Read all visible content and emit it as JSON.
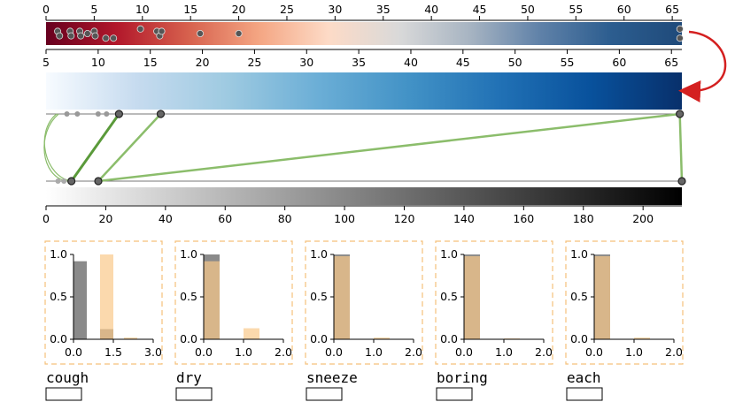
{
  "colors": {
    "ramp_top": [
      "#67001f",
      "#b2182b",
      "#d6604d",
      "#f4a582",
      "#fddbc7",
      "#d9d9d9",
      "#a7b4c2",
      "#5f81a8",
      "#2c5d8f",
      "#1f4a7a"
    ],
    "ramp_mid": [
      "#f7fbff",
      "#c6dbef",
      "#9ecae1",
      "#6baed6",
      "#4292c6",
      "#2171b5",
      "#08519c",
      "#08306b"
    ],
    "ramp_bottom": [
      "#ffffff",
      "#000000"
    ],
    "link": "#5a9a3a",
    "link_light": "#8bbd6b",
    "arrow": "#d42020",
    "hist_gray": "#8a8a8a",
    "hist_orange": "#f9c98a",
    "panel_border": "#f5c07a"
  },
  "axis_top": {
    "min": 0,
    "max": 66,
    "ticks": [
      0,
      5,
      10,
      15,
      20,
      25,
      30,
      35,
      40,
      45,
      50,
      55,
      60,
      65
    ]
  },
  "axis_mid": {
    "min": 5,
    "max": 66,
    "ticks": [
      5,
      10,
      15,
      20,
      25,
      30,
      35,
      40,
      45,
      50,
      55,
      60,
      65
    ]
  },
  "axis_bottom": {
    "min": 0,
    "max": 213,
    "ticks": [
      0,
      20,
      40,
      60,
      80,
      100,
      120,
      140,
      160,
      180,
      200
    ]
  },
  "chart_data": [
    {
      "type": "scatter",
      "title": "",
      "points_top_ramp": [
        [
          1.2,
          0.4
        ],
        [
          1.4,
          0.6
        ],
        [
          2.5,
          0.4
        ],
        [
          2.6,
          0.6
        ],
        [
          3.5,
          0.4
        ],
        [
          3.6,
          0.6
        ],
        [
          4.3,
          0.5
        ],
        [
          5.0,
          0.4
        ],
        [
          5.1,
          0.6
        ],
        [
          6.2,
          0.7
        ],
        [
          7.0,
          0.7
        ],
        [
          9.8,
          0.3
        ],
        [
          11.5,
          0.4
        ],
        [
          11.8,
          0.6
        ],
        [
          12.0,
          0.4
        ],
        [
          16.0,
          0.5
        ],
        [
          20.0,
          0.5
        ],
        [
          65.8,
          0.3
        ],
        [
          65.8,
          0.7
        ]
      ],
      "links": [
        {
          "from": 6,
          "to": 8.5,
          "style": "light"
        },
        {
          "from": 6.2,
          "to": 7.0,
          "style": "light"
        },
        {
          "from": 12.0,
          "to": 8.5,
          "style": "dark"
        },
        {
          "from": 16.0,
          "to": 17.5,
          "style": "normal"
        },
        {
          "from": 65.8,
          "to": 17.5,
          "style": "normal"
        },
        {
          "from": 65.8,
          "to": 213,
          "style": "normal"
        }
      ],
      "upper_points": [
        7.0,
        8.0,
        10.0,
        10.8,
        12.0,
        16.0,
        65.8
      ],
      "lower_points": [
        4.0,
        6.0,
        8.5,
        17.5,
        213
      ]
    },
    {
      "type": "bar",
      "title": "cough",
      "x_ticks": [
        "0.0",
        "1.5",
        "3.0"
      ],
      "xlim": [
        0,
        3.0
      ],
      "ylim": [
        0,
        1.0
      ],
      "y_ticks": [
        "0.0",
        "0.5",
        "1.0"
      ],
      "series": [
        {
          "bins": [
            [
              0.0,
              0.5,
              0.92
            ],
            [
              1.0,
              1.5,
              0.12
            ]
          ]
        },
        {
          "bins": [
            [
              1.0,
              1.5,
              1.0
            ],
            [
              1.9,
              2.4,
              0.02
            ]
          ]
        }
      ]
    },
    {
      "type": "bar",
      "title": "dry",
      "x_ticks": [
        "0.0",
        "1.0",
        "2.0"
      ],
      "xlim": [
        0,
        2.0
      ],
      "ylim": [
        0,
        1.0
      ],
      "y_ticks": [
        "0.0",
        "0.5",
        "1.0"
      ],
      "series": [
        {
          "bins": [
            [
              0.0,
              0.4,
              1.0
            ]
          ]
        },
        {
          "bins": [
            [
              0.0,
              0.4,
              0.92
            ],
            [
              1.0,
              1.4,
              0.13
            ]
          ]
        }
      ]
    },
    {
      "type": "bar",
      "title": "sneeze",
      "x_ticks": [
        "0.0",
        "1.0",
        "2.0"
      ],
      "xlim": [
        0,
        2.0
      ],
      "ylim": [
        0,
        1.0
      ],
      "y_ticks": [
        "0.0",
        "0.5",
        "1.0"
      ],
      "series": [
        {
          "bins": [
            [
              0.0,
              0.4,
              1.0
            ]
          ]
        },
        {
          "bins": [
            [
              0.0,
              0.4,
              0.98
            ],
            [
              1.0,
              1.4,
              0.02
            ]
          ]
        }
      ]
    },
    {
      "type": "bar",
      "title": "boring",
      "x_ticks": [
        "0.0",
        "1.0",
        "2.0"
      ],
      "xlim": [
        0,
        2.0
      ],
      "ylim": [
        0,
        1.0
      ],
      "y_ticks": [
        "0.0",
        "0.5",
        "1.0"
      ],
      "series": [
        {
          "bins": [
            [
              0.0,
              0.4,
              1.0
            ]
          ]
        },
        {
          "bins": [
            [
              0.0,
              0.4,
              0.98
            ],
            [
              1.0,
              1.4,
              0.01
            ]
          ]
        }
      ]
    },
    {
      "type": "bar",
      "title": "each",
      "x_ticks": [
        "0.0",
        "1.0",
        "2.0"
      ],
      "xlim": [
        0,
        2.0
      ],
      "ylim": [
        0,
        1.0
      ],
      "y_ticks": [
        "0.0",
        "0.5",
        "1.0"
      ],
      "series": [
        {
          "bins": [
            [
              0.0,
              0.4,
              1.0
            ]
          ]
        },
        {
          "bins": [
            [
              0.0,
              0.4,
              0.98
            ],
            [
              1.0,
              1.4,
              0.02
            ]
          ]
        }
      ]
    }
  ]
}
